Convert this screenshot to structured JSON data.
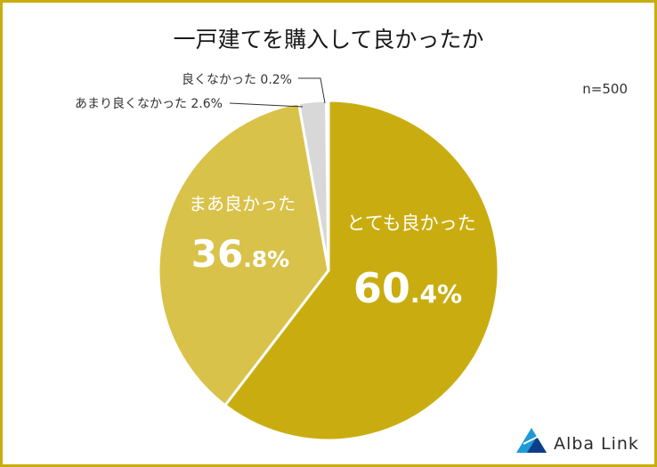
{
  "chart_data": {
    "type": "pie",
    "title": "一戸建てを購入して良かったか",
    "sample_note": "n=500",
    "slices": [
      {
        "label": "とても良かった",
        "value": 60.4,
        "int_part": "60",
        "dec_part": ".4%",
        "color": "#c9ad10"
      },
      {
        "label": "まあ良かった",
        "value": 36.8,
        "int_part": "36",
        "dec_part": ".8%",
        "color": "#d9c24a"
      },
      {
        "label": "あまり良くなかった",
        "value": 2.6,
        "text": "あまり良くなかった 2.6%",
        "color": "#d8d8d8"
      },
      {
        "label": "良くなかった",
        "value": 0.2,
        "text": "良くなかった 0.2%",
        "color": "#9a9a9a"
      }
    ]
  },
  "brand": {
    "name": "Alba Link",
    "colors": [
      "#1f9ad6",
      "#0d3e8a"
    ]
  }
}
